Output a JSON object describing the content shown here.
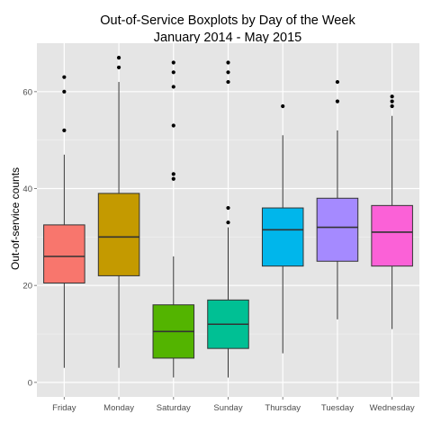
{
  "chart_data": {
    "type": "boxplot",
    "title": "Out-of-Service Boxplots by Day of the Week",
    "subtitle": "January 2014 - May 2015",
    "xlabel": "",
    "ylabel": "Out-of-service counts",
    "ylim": [
      -3,
      70
    ],
    "yticks": [
      0,
      20,
      40,
      60
    ],
    "grid": true,
    "categories": [
      "Friday",
      "Monday",
      "Saturday",
      "Sunday",
      "Thursday",
      "Tuesday",
      "Wednesday"
    ],
    "colors": [
      "#F8766D",
      "#C49A00",
      "#53B400",
      "#00C094",
      "#00B6EB",
      "#A58AFF",
      "#FB61D7"
    ],
    "boxes": [
      {
        "category": "Friday",
        "whisker_low": 3,
        "q1": 20.5,
        "median": 26,
        "q3": 32.5,
        "whisker_high": 47,
        "outliers": [
          52,
          60,
          63
        ]
      },
      {
        "category": "Monday",
        "whisker_low": 3,
        "q1": 22,
        "median": 30,
        "q3": 39,
        "whisker_high": 62,
        "outliers": [
          65,
          67
        ]
      },
      {
        "category": "Saturday",
        "whisker_low": 1,
        "q1": 5,
        "median": 10.5,
        "q3": 16,
        "whisker_high": 26,
        "outliers": [
          42,
          43,
          53,
          61,
          64,
          66
        ]
      },
      {
        "category": "Sunday",
        "whisker_low": 1,
        "q1": 7,
        "median": 12,
        "q3": 17,
        "whisker_high": 32,
        "outliers": [
          33,
          36,
          62,
          64,
          66
        ]
      },
      {
        "category": "Thursday",
        "whisker_low": 6,
        "q1": 24,
        "median": 31.5,
        "q3": 36,
        "whisker_high": 51,
        "outliers": [
          57
        ]
      },
      {
        "category": "Tuesday",
        "whisker_low": 13,
        "q1": 25,
        "median": 32,
        "q3": 38,
        "whisker_high": 52,
        "outliers": [
          58,
          62
        ]
      },
      {
        "category": "Wednesday",
        "whisker_low": 11,
        "q1": 24,
        "median": 31,
        "q3": 36.5,
        "whisker_high": 55,
        "outliers": [
          57,
          58,
          59
        ]
      }
    ]
  }
}
